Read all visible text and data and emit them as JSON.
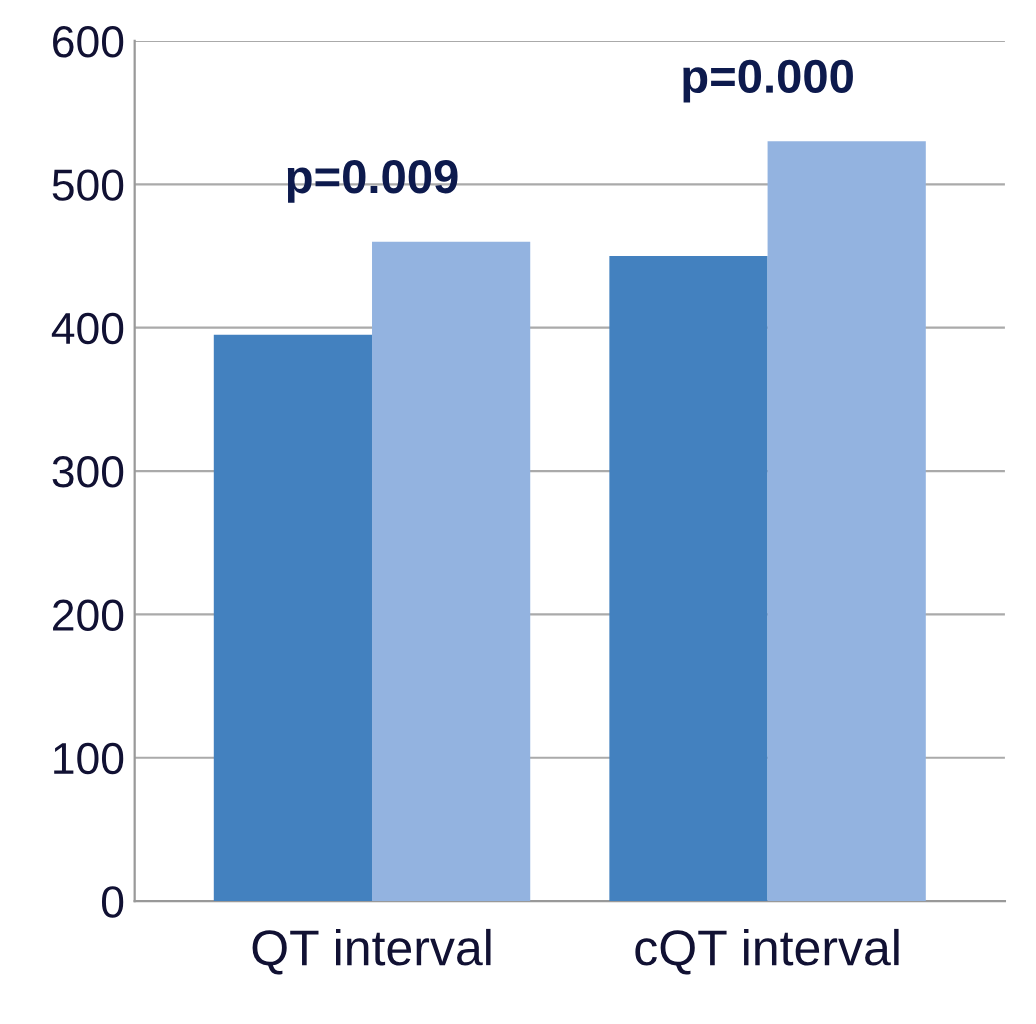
{
  "chart_data": {
    "type": "bar",
    "categories": [
      "QT interval",
      "cQT interval"
    ],
    "series": [
      {
        "color": "#4381bf",
        "values": [
          395,
          450
        ]
      },
      {
        "color": "#93b3e0",
        "values": [
          460,
          530
        ]
      }
    ],
    "ylim": [
      0,
      600
    ],
    "yticks": [
      0,
      100,
      200,
      300,
      400,
      500,
      600
    ],
    "grid": "y",
    "annotations": [
      "p=0.009",
      "p=0.000"
    ]
  }
}
